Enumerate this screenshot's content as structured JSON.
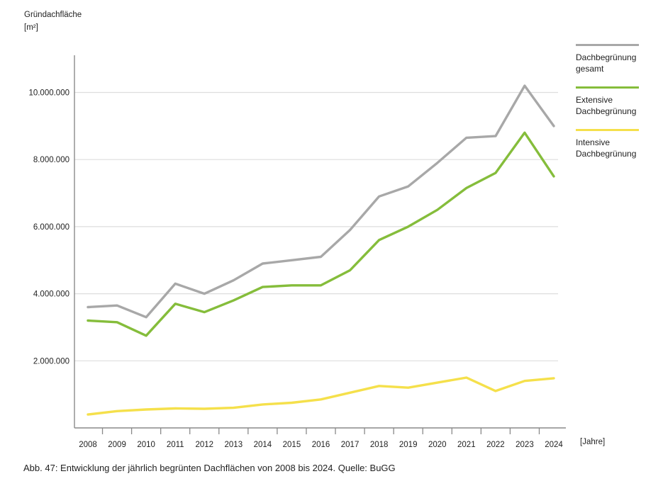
{
  "title": {
    "line1": "Gründachfläche",
    "line2": "[m²]"
  },
  "x_axis_unit": "[Jahre]",
  "caption": "Abb. 47: Entwicklung der jährlich begrünten Dachflächen von 2008 bis 2024. Quelle: BuGG",
  "colors": {
    "gesamt": "#a8a8a8",
    "extensiv": "#85bd3b",
    "intensiv": "#f5e04b",
    "grid": "#dedede",
    "axis": "#8a8a8a",
    "text": "#1f1f1f"
  },
  "legend": {
    "items": [
      {
        "id": "gesamt",
        "label_line1": "Dachbegrünung",
        "label_line2": "gesamt",
        "color": "#a8a8a8"
      },
      {
        "id": "extensiv",
        "label_line1": "Extensive",
        "label_line2": "Dachbegrünung",
        "color": "#85bd3b"
      },
      {
        "id": "intensiv",
        "label_line1": "Intensive",
        "label_line2": "Dachbegrünung",
        "color": "#f5e04b"
      }
    ]
  },
  "chart_data": {
    "type": "line",
    "title": "Entwicklung der jährlich begrünten Dachflächen von 2008 bis 2024",
    "xlabel": "[Jahre]",
    "ylabel": "Gründachfläche [m²]",
    "x": [
      2008,
      2009,
      2010,
      2011,
      2012,
      2013,
      2014,
      2015,
      2016,
      2017,
      2018,
      2019,
      2020,
      2021,
      2022,
      2023,
      2024
    ],
    "x_tick_labels": [
      "2008",
      "2009",
      "2010",
      "2011",
      "2012",
      "2013",
      "2014",
      "2015",
      "2016",
      "2017",
      "2018",
      "2019",
      "2020",
      "2021",
      "2022",
      "2023",
      "2024"
    ],
    "ylim": [
      0,
      11100000
    ],
    "grid": "horizontal",
    "legend_position": "right",
    "y_ticks": [
      {
        "value": 2000000,
        "label": "2.000.000"
      },
      {
        "value": 4000000,
        "label": "4.000.000"
      },
      {
        "value": 6000000,
        "label": "6.000.000"
      },
      {
        "value": 8000000,
        "label": "8.000.000"
      },
      {
        "value": 10000000,
        "label": "10.000.000"
      }
    ],
    "series": [
      {
        "name": "Dachbegrünung gesamt",
        "color": "#a8a8a8",
        "values": [
          3600000,
          3650000,
          3300000,
          4300000,
          4000000,
          4400000,
          4900000,
          5000000,
          5100000,
          5900000,
          6900000,
          7200000,
          7900000,
          8650000,
          8700000,
          10200000,
          9000000
        ]
      },
      {
        "name": "Extensive Dachbegrünung",
        "color": "#85bd3b",
        "values": [
          3200000,
          3150000,
          2750000,
          3700000,
          3450000,
          3800000,
          4200000,
          4250000,
          4250000,
          4700000,
          5600000,
          6000000,
          6500000,
          7150000,
          7600000,
          8800000,
          7500000
        ]
      },
      {
        "name": "Intensive Dachbegrünung",
        "color": "#f5e04b",
        "values": [
          400000,
          500000,
          550000,
          580000,
          570000,
          600000,
          700000,
          750000,
          850000,
          1050000,
          1250000,
          1200000,
          1350000,
          1500000,
          1100000,
          1400000,
          1480000
        ]
      }
    ]
  }
}
